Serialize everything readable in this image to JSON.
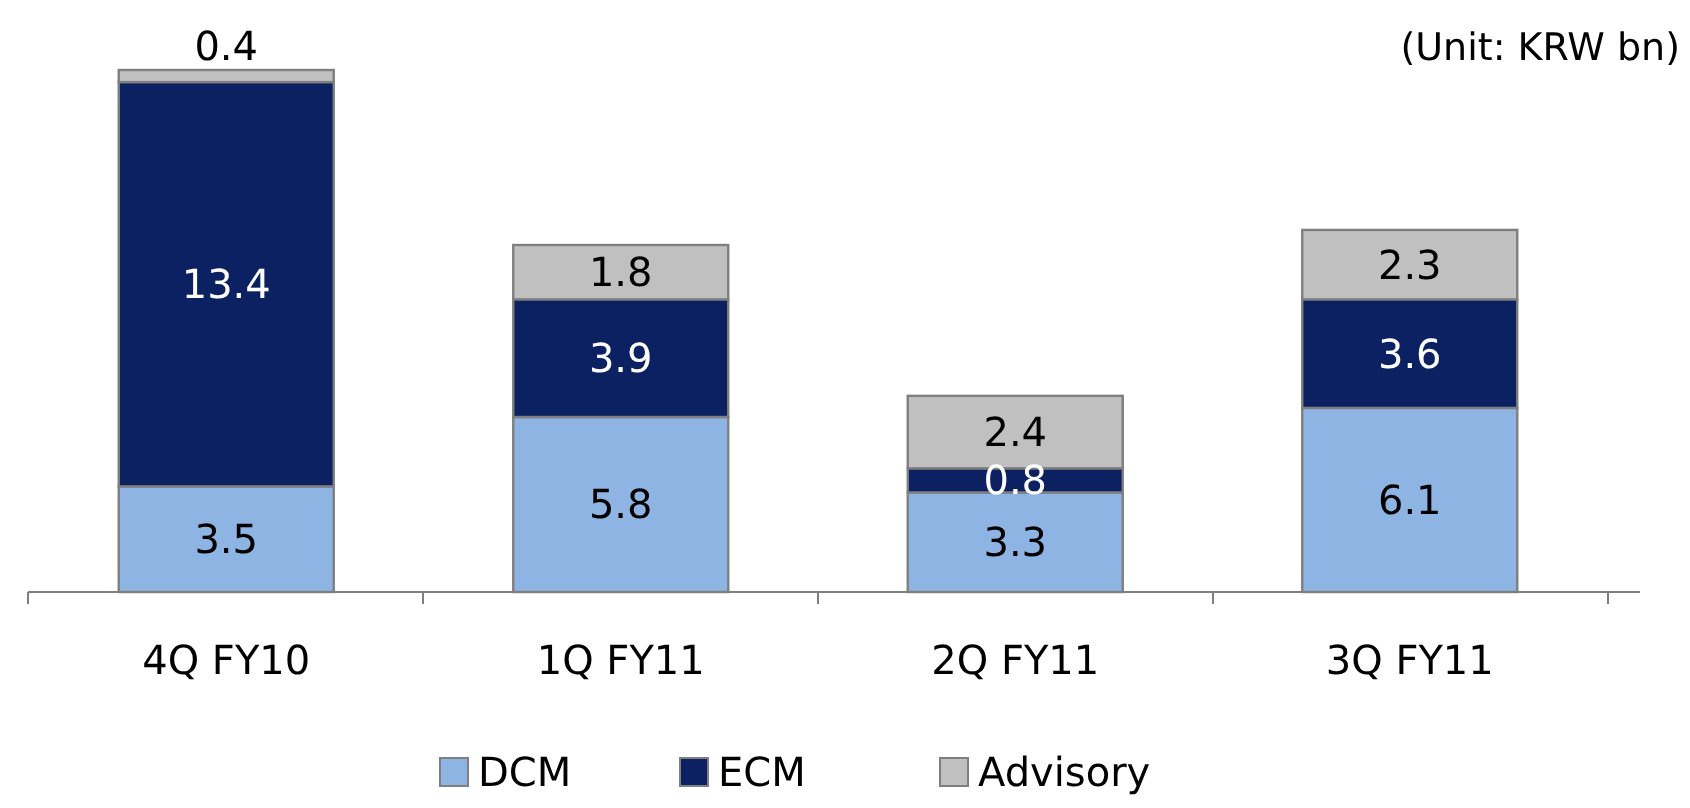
{
  "chart_data": {
    "type": "bar",
    "stacked": true,
    "data_labels": true,
    "legend": "bottom",
    "categories": [
      "4Q FY10",
      "1Q FY11",
      "2Q FY11",
      "3Q FY11"
    ],
    "series": [
      {
        "name": "DCM",
        "color": "#8db4e2",
        "values": [
          3.5,
          5.8,
          3.3,
          6.1
        ]
      },
      {
        "name": "ECM",
        "color": "#0b2161",
        "values": [
          13.4,
          3.9,
          0.8,
          3.6
        ]
      },
      {
        "name": "Advisory",
        "color": "#c0c0c0",
        "values": [
          0.4,
          1.8,
          2.4,
          2.3
        ]
      }
    ],
    "annotations": [
      "(Unit: KRW bn)"
    ]
  }
}
